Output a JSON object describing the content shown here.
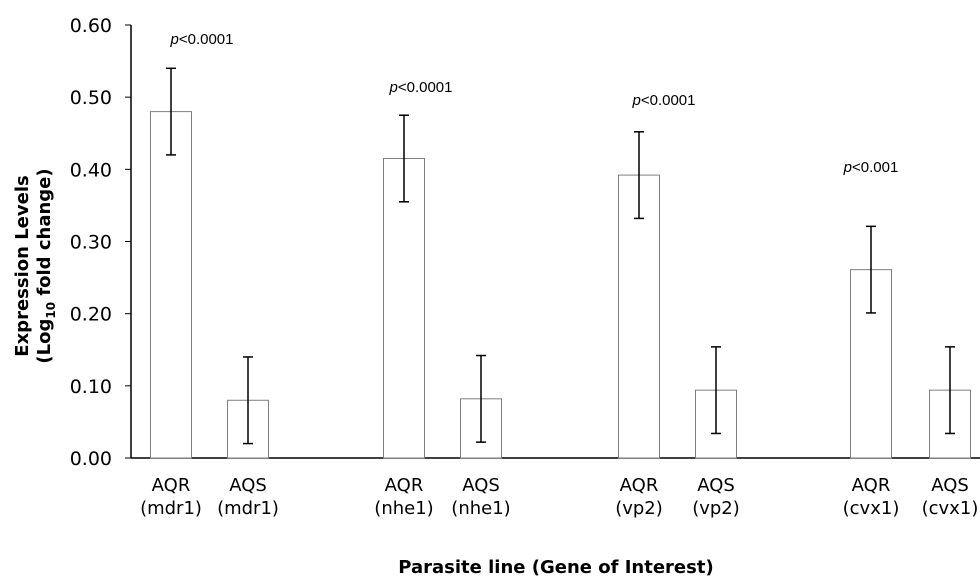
{
  "chart_data": {
    "type": "bar",
    "xlabel": "Parasite line (Gene of Interest)",
    "ylabel_line1": "Expression Levels",
    "ylabel_line2_prefix": "(Log",
    "ylabel_line2_subscript": "10",
    "ylabel_line2_suffix": " fold change)",
    "ylim": [
      0,
      0.6
    ],
    "yticks": [
      "0.00",
      "0.10",
      "0.20",
      "0.30",
      "0.40",
      "0.50",
      "0.60"
    ],
    "grid": false,
    "bar_fill": "#ffffff",
    "bar_stroke": "#7f7f7f",
    "groups": [
      {
        "annotation_p": "p",
        "annotation_rest": "<0.0001",
        "bars": [
          {
            "line1": "AQR",
            "line2": "(mdr1)",
            "value": 0.48,
            "error": 0.06
          },
          {
            "line1": "AQS",
            "line2": "(mdr1)",
            "value": 0.08,
            "error": 0.06
          }
        ]
      },
      {
        "annotation_p": "p",
        "annotation_rest": "<0.0001",
        "bars": [
          {
            "line1": "AQR",
            "line2": "(nhe1)",
            "value": 0.415,
            "error": 0.06
          },
          {
            "line1": "AQS",
            "line2": "(nhe1)",
            "value": 0.082,
            "error": 0.06
          }
        ]
      },
      {
        "annotation_p": "p",
        "annotation_rest": "<0.0001",
        "bars": [
          {
            "line1": "AQR",
            "line2": "(vp2)",
            "value": 0.392,
            "error": 0.06
          },
          {
            "line1": "AQS",
            "line2": "(vp2)",
            "value": 0.094,
            "error": 0.06
          }
        ]
      },
      {
        "annotation_p": "p",
        "annotation_rest": "<0.001",
        "bars": [
          {
            "line1": "AQR",
            "line2": "(cvx1)",
            "value": 0.261,
            "error": 0.06
          },
          {
            "line1": "AQS",
            "line2": "(cvx1)",
            "value": 0.094,
            "error": 0.06
          }
        ]
      }
    ]
  }
}
